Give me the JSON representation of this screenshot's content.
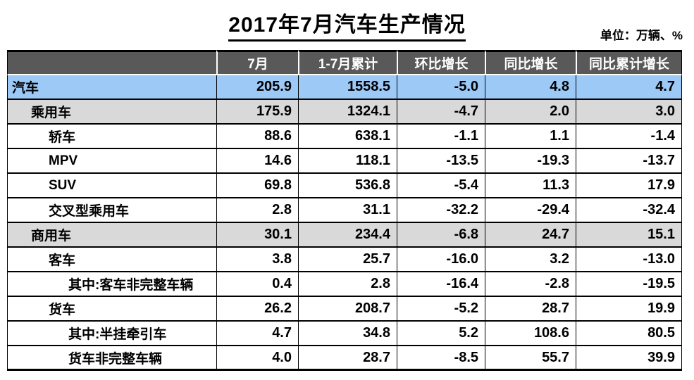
{
  "title": "2017年7月汽车生产情况",
  "unit_label": "单位：万辆、%",
  "colors": {
    "header_bg": "#595959",
    "header_text": "#FFFFFF",
    "row_total_bg": "#9DC9F7",
    "row_subtotal_bg": "#D9D9D9",
    "row_bg": "#FFFFFF",
    "border": "#000000",
    "text": "#000000"
  },
  "chart_data": {
    "type": "table",
    "title": "2017年7月汽车生产情况",
    "unit": "万辆、%",
    "columns": [
      "",
      "7月",
      "1-7月累计",
      "环比增长",
      "同比增长",
      "同比累计增长"
    ],
    "rows": [
      {
        "label": "汽车",
        "indent": 0,
        "style": "blue",
        "values": [
          "205.9",
          "1558.5",
          "-5.0",
          "4.8",
          "4.7"
        ]
      },
      {
        "label": "乘用车",
        "indent": 1,
        "style": "gray",
        "values": [
          "175.9",
          "1324.1",
          "-4.7",
          "2.0",
          "3.0"
        ]
      },
      {
        "label": "轿车",
        "indent": 2,
        "style": "white",
        "values": [
          "88.6",
          "638.1",
          "-1.1",
          "1.1",
          "-1.4"
        ]
      },
      {
        "label": "MPV",
        "indent": 2,
        "style": "white",
        "values": [
          "14.6",
          "118.1",
          "-13.5",
          "-19.3",
          "-13.7"
        ]
      },
      {
        "label": "SUV",
        "indent": 2,
        "style": "white",
        "values": [
          "69.8",
          "536.8",
          "-5.4",
          "11.3",
          "17.9"
        ]
      },
      {
        "label": "交叉型乘用车",
        "indent": 2,
        "style": "white",
        "values": [
          "2.8",
          "31.1",
          "-32.2",
          "-29.4",
          "-32.4"
        ]
      },
      {
        "label": "商用车",
        "indent": 1,
        "style": "gray",
        "values": [
          "30.1",
          "234.4",
          "-6.8",
          "24.7",
          "15.1"
        ]
      },
      {
        "label": "客车",
        "indent": 2,
        "style": "white",
        "values": [
          "3.8",
          "25.7",
          "-16.0",
          "3.2",
          "-13.0"
        ]
      },
      {
        "label": "其中:客车非完整车辆",
        "indent": 3,
        "style": "white",
        "values": [
          "0.4",
          "2.8",
          "-16.4",
          "-2.8",
          "-19.5"
        ]
      },
      {
        "label": "货车",
        "indent": 2,
        "style": "white",
        "values": [
          "26.2",
          "208.7",
          "-5.2",
          "28.7",
          "19.9"
        ]
      },
      {
        "label": "其中:半挂牵引车",
        "indent": 3,
        "style": "white",
        "values": [
          "4.7",
          "34.8",
          "5.2",
          "108.6",
          "80.5"
        ]
      },
      {
        "label": "货车非完整车辆",
        "indent": 3,
        "style": "white",
        "values": [
          "4.0",
          "28.7",
          "-8.5",
          "55.7",
          "39.9"
        ]
      }
    ]
  }
}
